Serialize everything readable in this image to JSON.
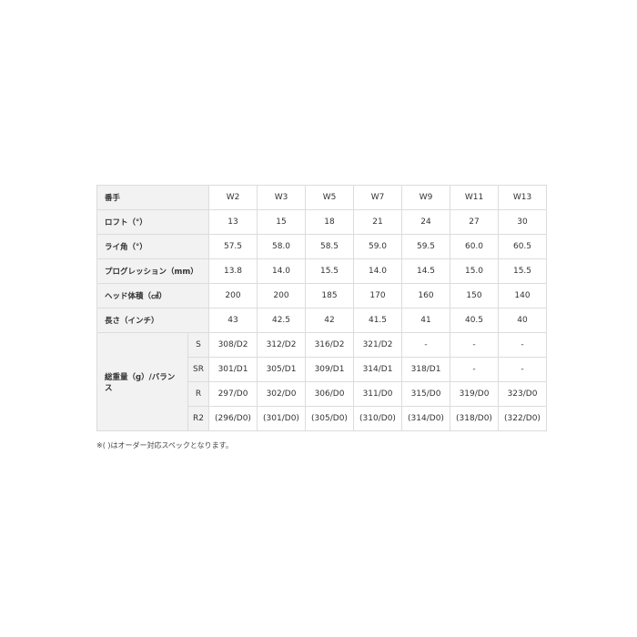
{
  "header": {
    "label": "番手",
    "cols": [
      "W2",
      "W3",
      "W5",
      "W7",
      "W9",
      "W11",
      "W13"
    ]
  },
  "rows": [
    {
      "label": "ロフト（°）",
      "values": [
        "13",
        "15",
        "18",
        "21",
        "24",
        "27",
        "30"
      ]
    },
    {
      "label": "ライ角（°）",
      "values": [
        "57.5",
        "58.0",
        "58.5",
        "59.0",
        "59.5",
        "60.0",
        "60.5"
      ]
    },
    {
      "label": "プログレッション（mm）",
      "values": [
        "13.8",
        "14.0",
        "15.5",
        "14.0",
        "14.5",
        "15.0",
        "15.5"
      ]
    },
    {
      "label": "ヘッド体積（㎤）",
      "values": [
        "200",
        "200",
        "185",
        "170",
        "160",
        "150",
        "140"
      ]
    },
    {
      "label": "長さ（インチ）",
      "values": [
        "43",
        "42.5",
        "42",
        "41.5",
        "41",
        "40.5",
        "40"
      ]
    }
  ],
  "weight": {
    "label": "総重量（g）/バランス",
    "rows": [
      {
        "flex": "S",
        "values": [
          "308/D2",
          "312/D2",
          "316/D2",
          "321/D2",
          "-",
          "-",
          "-"
        ]
      },
      {
        "flex": "SR",
        "values": [
          "301/D1",
          "305/D1",
          "309/D1",
          "314/D1",
          "318/D1",
          "-",
          "-"
        ]
      },
      {
        "flex": "R",
        "values": [
          "297/D0",
          "302/D0",
          "306/D0",
          "311/D0",
          "315/D0",
          "319/D0",
          "323/D0"
        ]
      },
      {
        "flex": "R2",
        "values": [
          "(296/D0)",
          "(301/D0)",
          "(305/D0)",
          "(310/D0)",
          "(314/D0)",
          "(318/D0)",
          "(322/D0)"
        ]
      }
    ]
  },
  "note": "※( )はオーダー対応スペックとなります。"
}
